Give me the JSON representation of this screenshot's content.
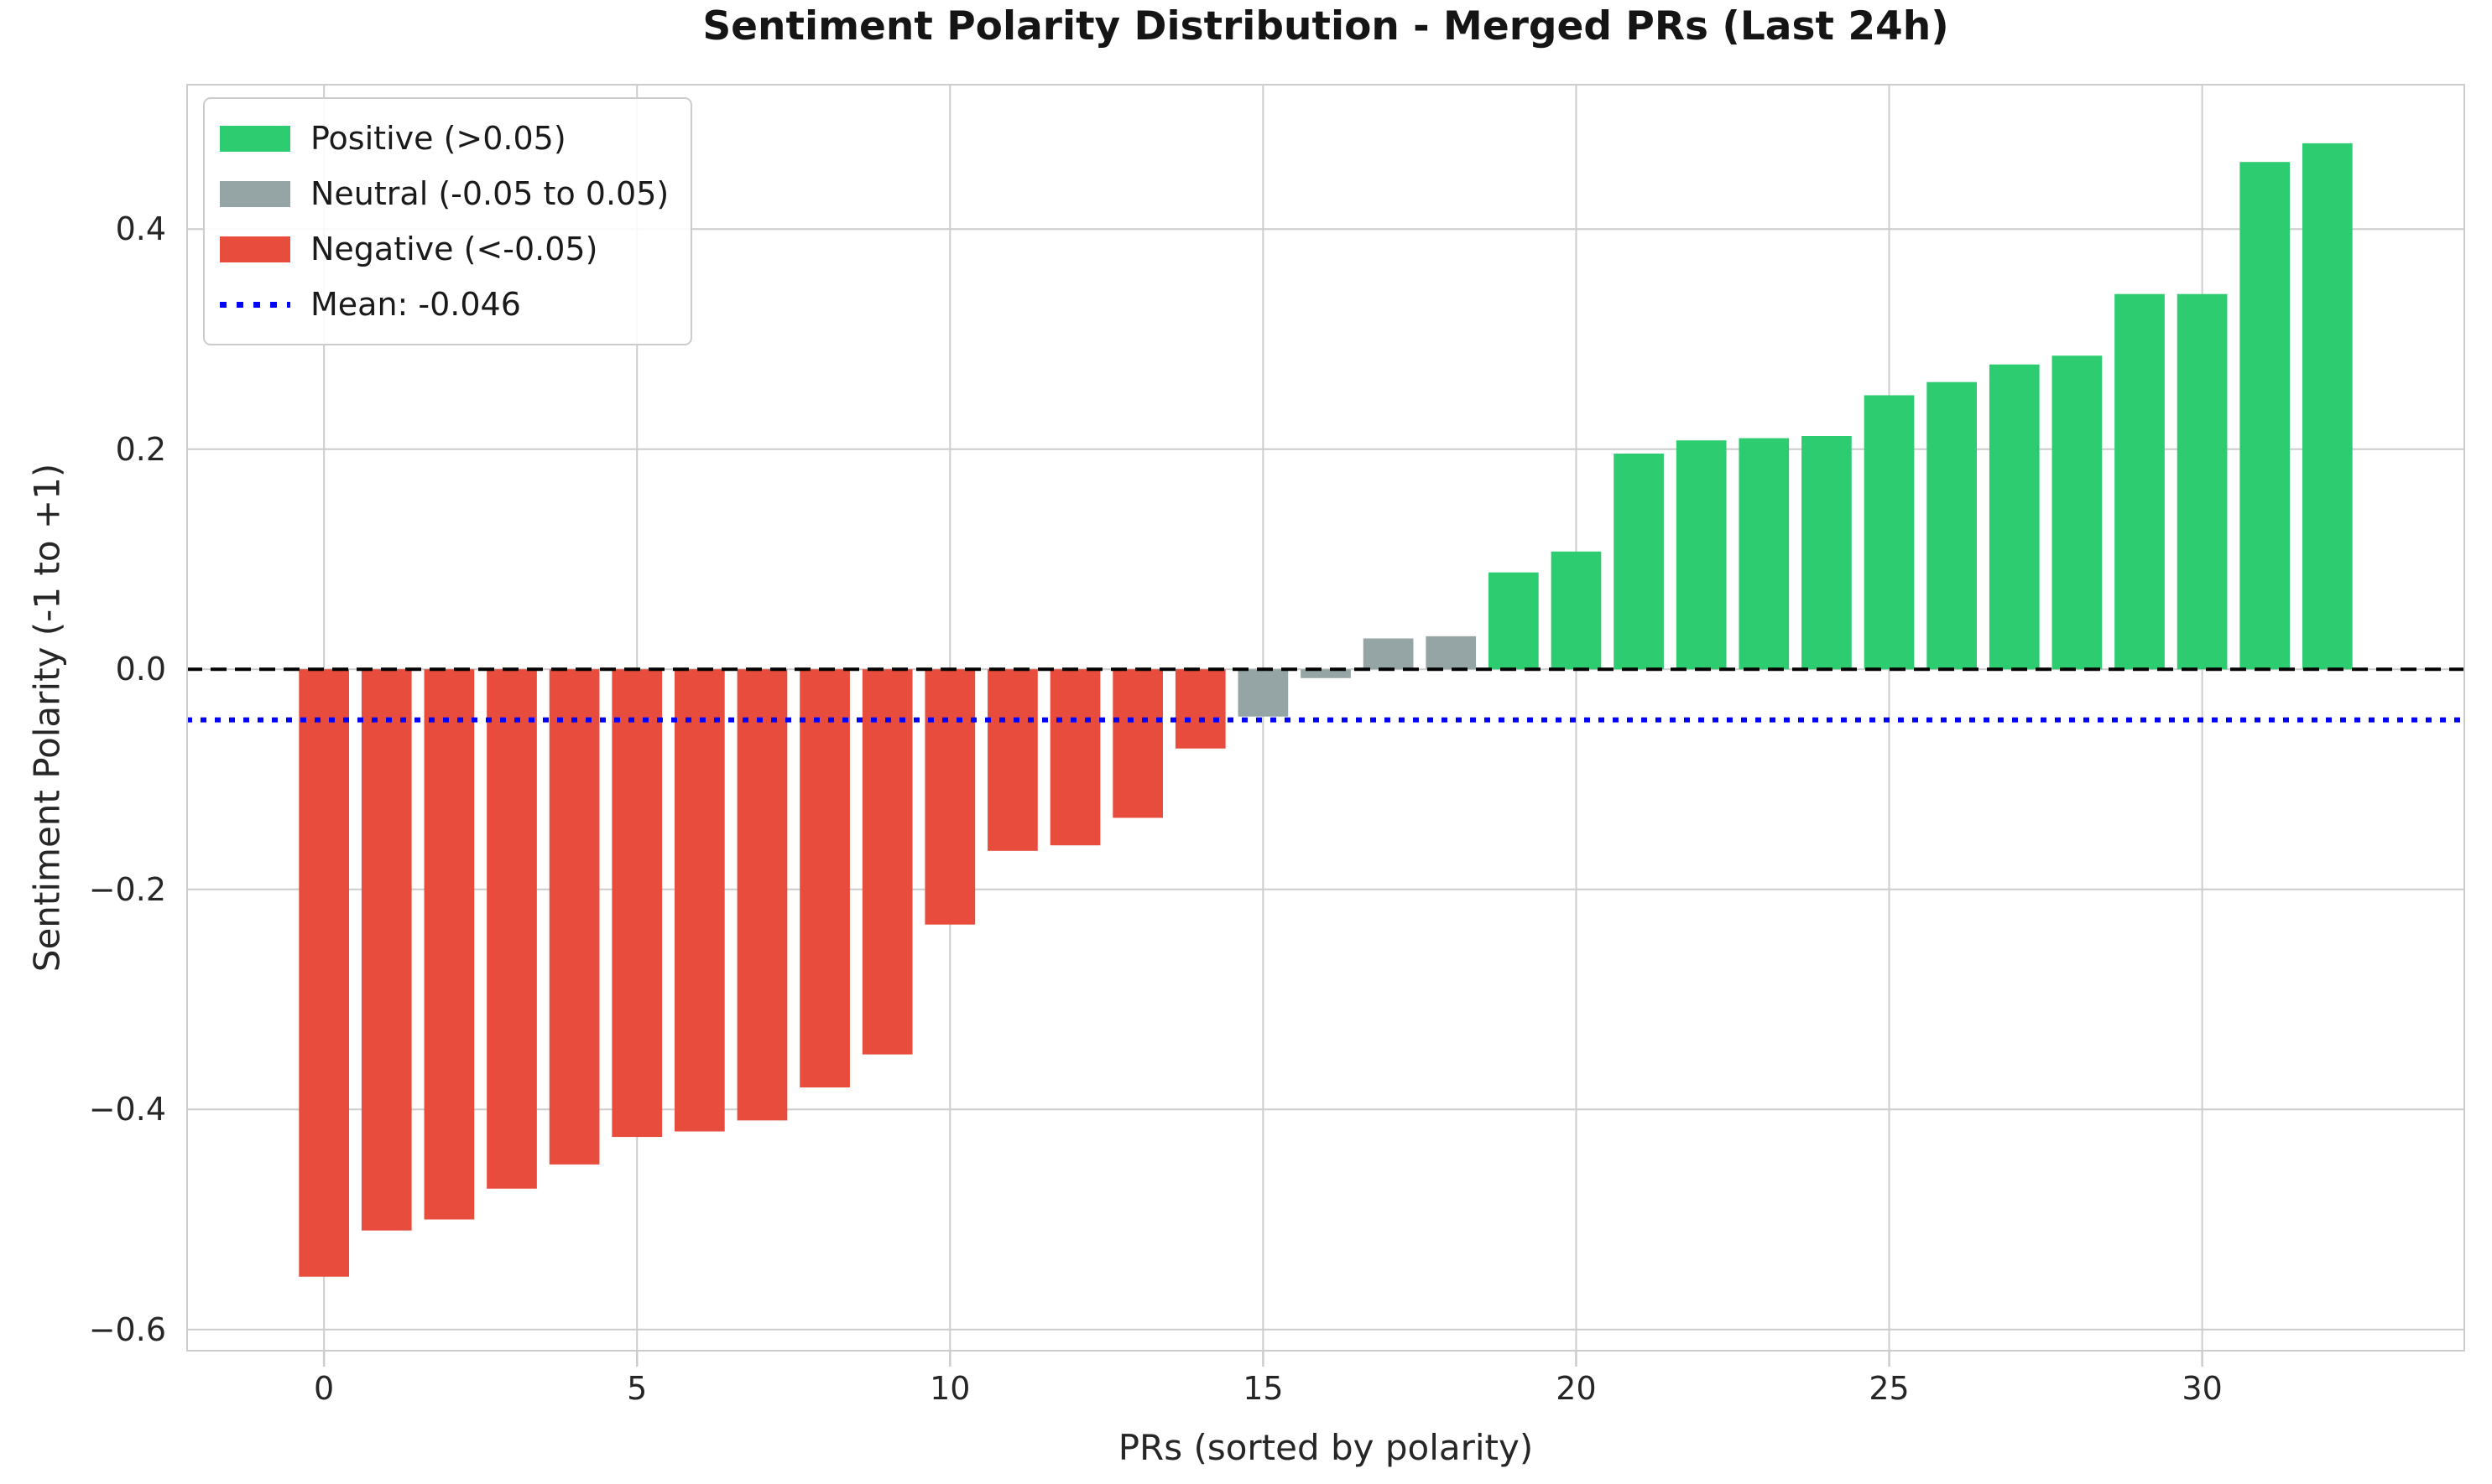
{
  "chart_data": {
    "type": "bar",
    "title": "Sentiment Polarity Distribution - Merged PRs (Last 24h)",
    "xlabel": "PRs (sorted by polarity)",
    "ylabel": "Sentiment Polarity (-1 to +1)",
    "categories": [
      0,
      1,
      2,
      3,
      4,
      5,
      6,
      7,
      8,
      9,
      10,
      11,
      12,
      13,
      14,
      15,
      16,
      17,
      18,
      19,
      20,
      21,
      22,
      23,
      24,
      25,
      26,
      27,
      28,
      29,
      30,
      31,
      32
    ],
    "values": [
      -0.552,
      -0.51,
      -0.5,
      -0.472,
      -0.45,
      -0.425,
      -0.42,
      -0.41,
      -0.38,
      -0.35,
      -0.232,
      -0.165,
      -0.16,
      -0.135,
      -0.072,
      -0.043,
      -0.008,
      0.028,
      0.03,
      0.088,
      0.107,
      0.196,
      0.208,
      0.21,
      0.212,
      0.249,
      0.261,
      0.277,
      0.285,
      0.341,
      0.341,
      0.461,
      0.478
    ],
    "thresholds": {
      "positive_above": 0.05,
      "negative_below": -0.05
    },
    "mean": -0.046,
    "legend_entries": [
      {
        "label": "Positive (>0.05)",
        "swatch": "patch",
        "color_key": "positive"
      },
      {
        "label": "Neutral (-0.05 to 0.05)",
        "swatch": "patch",
        "color_key": "neutral"
      },
      {
        "label": "Negative (<-0.05)",
        "swatch": "patch",
        "color_key": "negative"
      },
      {
        "label": "Mean: -0.046",
        "swatch": "line",
        "color_key": "mean"
      }
    ],
    "legend_position": "upper left",
    "grid": true,
    "xlim": [
      -2.2,
      34.2
    ],
    "ylim": [
      -0.62,
      0.532
    ],
    "xticks": [
      0,
      5,
      10,
      15,
      20,
      25,
      30
    ],
    "xtick_labels": [
      "0",
      "5",
      "10",
      "15",
      "20",
      "25",
      "30"
    ],
    "yticks": [
      0.4,
      0.2,
      0.0,
      -0.2,
      -0.4,
      -0.6
    ],
    "ytick_labels": [
      "0.4",
      "0.2",
      "0.0",
      "−0.2",
      "−0.4",
      "−0.6"
    ],
    "bar_width_fraction": 0.8,
    "colors": {
      "positive": "#2ecc71",
      "neutral": "#95a5a6",
      "negative": "#e74c3c",
      "mean": "#0000ff",
      "zero_line": "#000000",
      "grid": "#cccccc",
      "text": "#262626"
    }
  }
}
